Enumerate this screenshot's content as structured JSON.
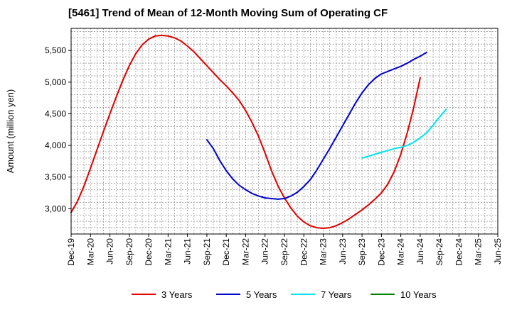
{
  "chart_data": {
    "type": "line",
    "title": "[5461]  Trend of Mean of 12-Month Moving Sum of Operating CF",
    "xlabel": "",
    "ylabel": "Amount (million yen)",
    "ylim": [
      2600,
      5850
    ],
    "yticks": [
      3000,
      3500,
      4000,
      4500,
      5000,
      5500
    ],
    "ytick_labels": [
      "3,000",
      "3,500",
      "4,000",
      "4,500",
      "5,000",
      "5,500"
    ],
    "xlim_months": [
      0,
      66
    ],
    "xticks": [
      {
        "m": 0,
        "label": "Dec-19"
      },
      {
        "m": 3,
        "label": "Mar-20"
      },
      {
        "m": 6,
        "label": "Jun-20"
      },
      {
        "m": 9,
        "label": "Sep-20"
      },
      {
        "m": 12,
        "label": "Dec-20"
      },
      {
        "m": 15,
        "label": "Mar-21"
      },
      {
        "m": 18,
        "label": "Jun-21"
      },
      {
        "m": 21,
        "label": "Sep-21"
      },
      {
        "m": 24,
        "label": "Dec-21"
      },
      {
        "m": 27,
        "label": "Mar-22"
      },
      {
        "m": 30,
        "label": "Jun-22"
      },
      {
        "m": 33,
        "label": "Sep-22"
      },
      {
        "m": 36,
        "label": "Dec-22"
      },
      {
        "m": 39,
        "label": "Mar-23"
      },
      {
        "m": 42,
        "label": "Jun-23"
      },
      {
        "m": 45,
        "label": "Sep-23"
      },
      {
        "m": 48,
        "label": "Dec-23"
      },
      {
        "m": 51,
        "label": "Mar-24"
      },
      {
        "m": 54,
        "label": "Jun-24"
      },
      {
        "m": 57,
        "label": "Sep-24"
      },
      {
        "m": 60,
        "label": "Dec-24"
      },
      {
        "m": 63,
        "label": "Mar-25"
      },
      {
        "m": 66,
        "label": "Jun-25"
      }
    ],
    "grid": true,
    "legend_position": "bottom",
    "series": [
      {
        "name": "3 Years",
        "color": "#e00000",
        "points": [
          [
            0,
            2940
          ],
          [
            1,
            3120
          ],
          [
            2,
            3360
          ],
          [
            3,
            3640
          ],
          [
            4,
            3930
          ],
          [
            5,
            4220
          ],
          [
            6,
            4500
          ],
          [
            7,
            4770
          ],
          [
            8,
            5030
          ],
          [
            9,
            5260
          ],
          [
            10,
            5450
          ],
          [
            11,
            5590
          ],
          [
            12,
            5680
          ],
          [
            13,
            5730
          ],
          [
            14,
            5740
          ],
          [
            15,
            5730
          ],
          [
            16,
            5700
          ],
          [
            17,
            5650
          ],
          [
            18,
            5570
          ],
          [
            19,
            5480
          ],
          [
            20,
            5370
          ],
          [
            21,
            5260
          ],
          [
            22,
            5150
          ],
          [
            23,
            5040
          ],
          [
            24,
            4940
          ],
          [
            25,
            4830
          ],
          [
            26,
            4710
          ],
          [
            27,
            4550
          ],
          [
            28,
            4360
          ],
          [
            29,
            4140
          ],
          [
            30,
            3880
          ],
          [
            31,
            3600
          ],
          [
            32,
            3360
          ],
          [
            33,
            3170
          ],
          [
            34,
            3010
          ],
          [
            35,
            2880
          ],
          [
            36,
            2790
          ],
          [
            37,
            2730
          ],
          [
            38,
            2700
          ],
          [
            39,
            2690
          ],
          [
            40,
            2700
          ],
          [
            41,
            2730
          ],
          [
            42,
            2780
          ],
          [
            43,
            2840
          ],
          [
            44,
            2910
          ],
          [
            45,
            2980
          ],
          [
            46,
            3060
          ],
          [
            47,
            3150
          ],
          [
            48,
            3250
          ],
          [
            49,
            3390
          ],
          [
            50,
            3590
          ],
          [
            51,
            3860
          ],
          [
            52,
            4200
          ],
          [
            53,
            4600
          ],
          [
            54,
            5070
          ]
        ]
      },
      {
        "name": "5 Years",
        "color": "#0000cc",
        "points": [
          [
            21,
            4090
          ],
          [
            22,
            3950
          ],
          [
            23,
            3760
          ],
          [
            24,
            3600
          ],
          [
            25,
            3470
          ],
          [
            26,
            3370
          ],
          [
            27,
            3300
          ],
          [
            28,
            3240
          ],
          [
            29,
            3200
          ],
          [
            30,
            3170
          ],
          [
            31,
            3160
          ],
          [
            32,
            3150
          ],
          [
            33,
            3160
          ],
          [
            34,
            3200
          ],
          [
            35,
            3260
          ],
          [
            36,
            3350
          ],
          [
            37,
            3460
          ],
          [
            38,
            3610
          ],
          [
            39,
            3780
          ],
          [
            40,
            3950
          ],
          [
            41,
            4130
          ],
          [
            42,
            4310
          ],
          [
            43,
            4490
          ],
          [
            44,
            4670
          ],
          [
            45,
            4830
          ],
          [
            46,
            4960
          ],
          [
            47,
            5060
          ],
          [
            48,
            5130
          ],
          [
            49,
            5170
          ],
          [
            50,
            5210
          ],
          [
            51,
            5250
          ],
          [
            52,
            5300
          ],
          [
            53,
            5360
          ],
          [
            54,
            5410
          ],
          [
            55,
            5470
          ]
        ]
      },
      {
        "name": "7 Years",
        "color": "#00e5ee",
        "points": [
          [
            45,
            3800
          ],
          [
            46,
            3830
          ],
          [
            47,
            3860
          ],
          [
            48,
            3890
          ],
          [
            49,
            3920
          ],
          [
            50,
            3950
          ],
          [
            51,
            3970
          ],
          [
            52,
            4000
          ],
          [
            53,
            4050
          ],
          [
            54,
            4120
          ],
          [
            55,
            4200
          ],
          [
            56,
            4320
          ],
          [
            57,
            4450
          ],
          [
            58,
            4570
          ]
        ]
      },
      {
        "name": "10 Years",
        "color": "#008000",
        "points": []
      }
    ]
  }
}
